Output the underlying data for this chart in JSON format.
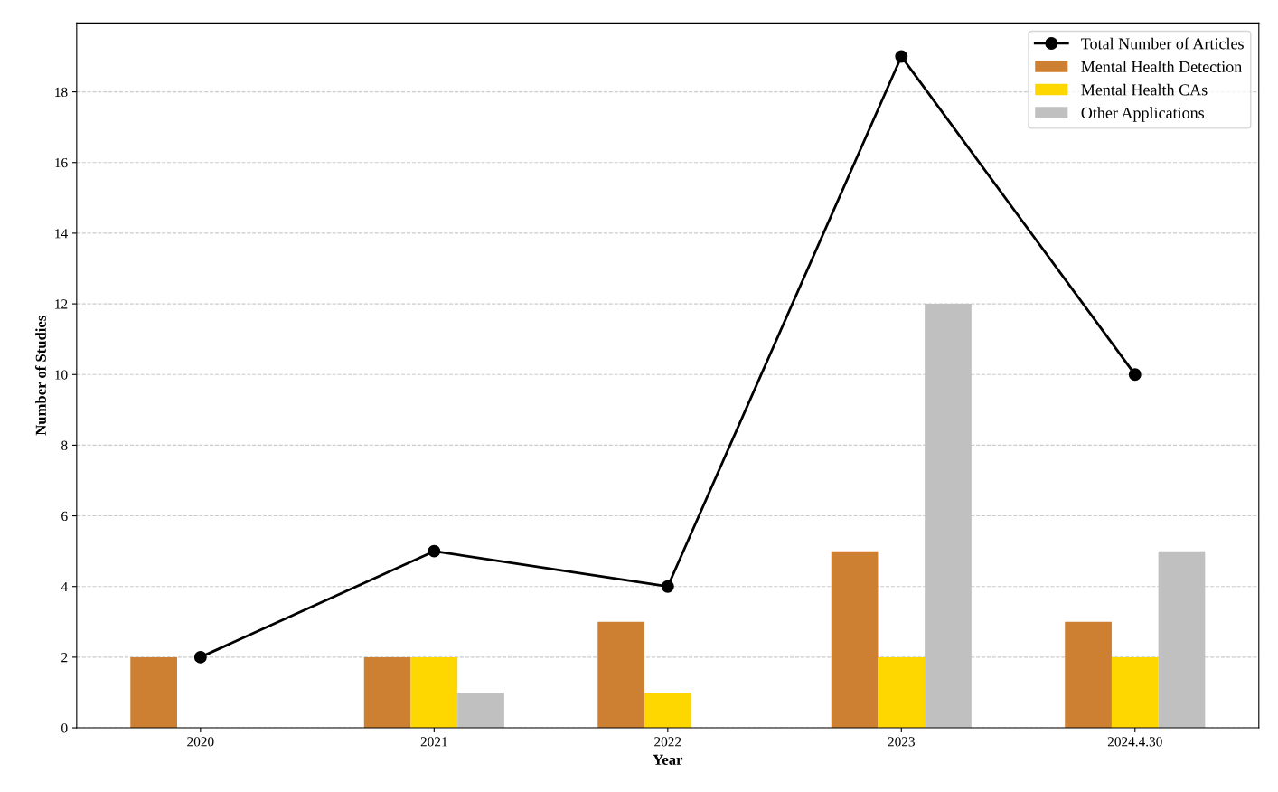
{
  "chart_data": {
    "type": "bar",
    "xlabel": "Year",
    "ylabel": "Number of Studies",
    "categories": [
      "2020",
      "2021",
      "2022",
      "2023",
      "2024.4.30"
    ],
    "series": [
      {
        "name": "Mental Health Detection",
        "color": "#cd7f32",
        "values": [
          2,
          2,
          3,
          5,
          3
        ]
      },
      {
        "name": "Mental Health CAs",
        "color": "#ffd700",
        "values": [
          0,
          2,
          1,
          2,
          2
        ]
      },
      {
        "name": "Other Applications",
        "color": "#c0c0c0",
        "values": [
          0,
          1,
          0,
          12,
          5
        ]
      },
      {
        "name": "Total Number of Articles",
        "type": "line",
        "color": "#000000",
        "marker": "circle",
        "values": [
          2,
          5,
          4,
          19,
          10
        ]
      }
    ],
    "ylim": [
      0,
      19.95
    ],
    "yticks": [
      0,
      2,
      4,
      6,
      8,
      10,
      12,
      14,
      16,
      18
    ],
    "grid": "y",
    "legend": "top right"
  }
}
